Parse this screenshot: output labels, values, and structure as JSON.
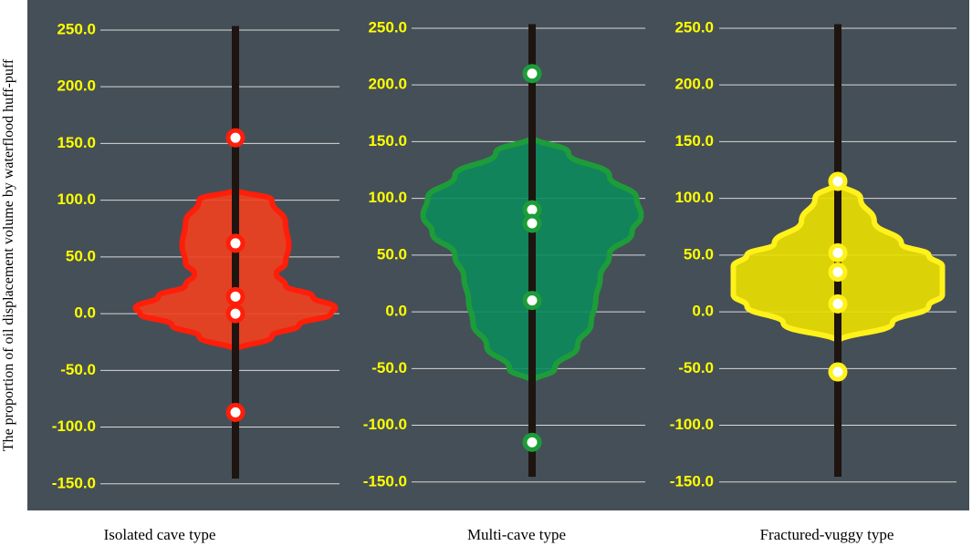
{
  "chart_data": [
    {
      "type": "violin",
      "y_label": "The proportion of oil displacement volume by waterflood huff-puff",
      "x_label": "Isolated cave type",
      "color": "#f2401f",
      "edge_color": "#ff1e0a",
      "ylim": [
        -155,
        260
      ],
      "yticks": [
        {
          "value": -150,
          "label": "-150.0"
        },
        {
          "value": -100,
          "label": "-100.0"
        },
        {
          "value": -50,
          "label": "-50.0"
        },
        {
          "value": 0,
          "label": "0.0"
        },
        {
          "value": 50,
          "label": "50.0"
        },
        {
          "value": 100,
          "label": "100.0"
        },
        {
          "value": 150,
          "label": "150.0"
        },
        {
          "value": 200,
          "label": "200.0"
        },
        {
          "value": 250,
          "label": "250.0"
        }
      ],
      "grid": true,
      "violin": {
        "y": [
          110,
          100,
          80,
          60,
          45,
          35,
          25,
          15,
          5,
          0,
          -10,
          -20,
          -33
        ],
        "width": [
          0,
          32,
          44,
          47,
          44,
          36,
          44,
          68,
          88,
          84,
          56,
          32,
          0
        ]
      },
      "values": [
        155,
        62,
        15,
        0,
        -87
      ]
    },
    {
      "type": "violin",
      "x_label": "Multi-cave type",
      "color": "#0b8a5c",
      "edge_color": "#1d9c3a",
      "ylim": [
        -155,
        260
      ],
      "yticks": [
        {
          "value": -150,
          "label": "-150.0"
        },
        {
          "value": -100,
          "label": "-100.0"
        },
        {
          "value": -50,
          "label": "-50.0"
        },
        {
          "value": 0,
          "label": "0.0"
        },
        {
          "value": 50,
          "label": "50.0"
        },
        {
          "value": 100,
          "label": "100.0"
        },
        {
          "value": 150,
          "label": "150.0"
        },
        {
          "value": 200,
          "label": "200.0"
        },
        {
          "value": 250,
          "label": "250.0"
        }
      ],
      "grid": true,
      "violin": {
        "y": [
          155,
          140,
          120,
          100,
          85,
          70,
          50,
          30,
          10,
          -10,
          -30,
          -50,
          -62
        ],
        "width": [
          0,
          32,
          68,
          92,
          96,
          88,
          68,
          60,
          56,
          52,
          40,
          20,
          0
        ]
      },
      "values": [
        210,
        90,
        78,
        10,
        -115
      ]
    },
    {
      "type": "violin",
      "x_label": "Fractured-vuggy type",
      "color": "#ece000",
      "edge_color": "#fff21a",
      "ylim": [
        -155,
        260
      ],
      "yticks": [
        {
          "value": -150,
          "label": "-150.0"
        },
        {
          "value": -100,
          "label": "-100.0"
        },
        {
          "value": -50,
          "label": "-50.0"
        },
        {
          "value": 0,
          "label": "0.0"
        },
        {
          "value": 50,
          "label": "50.0"
        },
        {
          "value": 100,
          "label": "100.0"
        },
        {
          "value": 150,
          "label": "150.0"
        },
        {
          "value": 200,
          "label": "200.0"
        },
        {
          "value": 250,
          "label": "250.0"
        }
      ],
      "grid": true,
      "violin": {
        "y": [
          115,
          100,
          80,
          60,
          50,
          40,
          30,
          15,
          5,
          -10,
          -27
        ],
        "width": [
          0,
          20,
          32,
          56,
          80,
          92,
          92,
          92,
          80,
          48,
          0
        ]
      },
      "values": [
        115,
        52,
        35,
        7,
        -53
      ]
    }
  ]
}
